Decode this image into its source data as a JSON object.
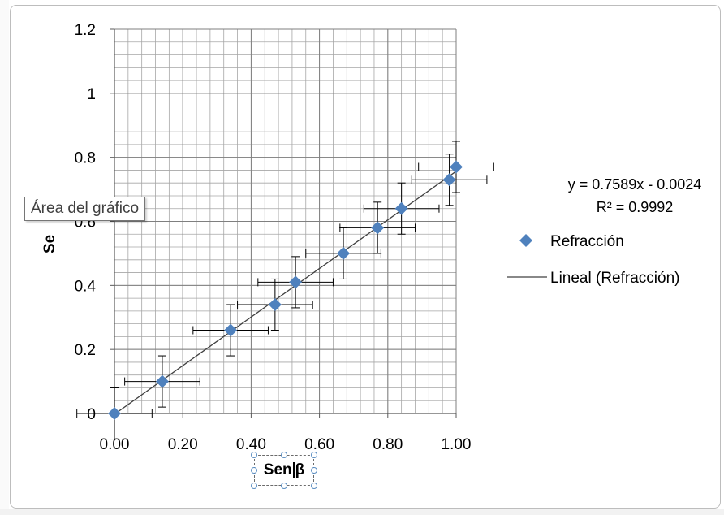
{
  "tooltip": "Área del gráfico",
  "y_axis_title_visible": "Se",
  "x_axis_title": {
    "before_caret": "Sen",
    "after_caret": "β"
  },
  "chart_data": {
    "type": "scatter",
    "title": "",
    "xlabel": "Sen β",
    "ylabel": "Se",
    "xlim": [
      0,
      1
    ],
    "ylim": [
      0,
      1.2
    ],
    "x_ticks": [
      "0.00",
      "0.20",
      "0.40",
      "0.60",
      "0.80",
      "1.00"
    ],
    "y_ticks": [
      "0",
      "0.2",
      "0.4",
      "0.6",
      "0.8",
      "1",
      "1.2"
    ],
    "grid": true,
    "series": [
      {
        "name": "Refracción",
        "marker": "diamond",
        "color": "#4f81bd",
        "points": [
          {
            "x": 0.0,
            "y": 0.0,
            "xerr": 0.11,
            "yerr": 0.08
          },
          {
            "x": 0.14,
            "y": 0.1,
            "xerr": 0.11,
            "yerr": 0.08
          },
          {
            "x": 0.34,
            "y": 0.26,
            "xerr": 0.11,
            "yerr": 0.08
          },
          {
            "x": 0.47,
            "y": 0.34,
            "xerr": 0.11,
            "yerr": 0.08
          },
          {
            "x": 0.53,
            "y": 0.41,
            "xerr": 0.11,
            "yerr": 0.08
          },
          {
            "x": 0.67,
            "y": 0.5,
            "xerr": 0.11,
            "yerr": 0.08
          },
          {
            "x": 0.77,
            "y": 0.58,
            "xerr": 0.11,
            "yerr": 0.08
          },
          {
            "x": 0.84,
            "y": 0.64,
            "xerr": 0.11,
            "yerr": 0.08
          },
          {
            "x": 0.98,
            "y": 0.73,
            "xerr": 0.11,
            "yerr": 0.08
          },
          {
            "x": 1.0,
            "y": 0.77,
            "xerr": 0.11,
            "yerr": 0.08
          }
        ]
      }
    ],
    "trendline": {
      "name": "Lineal (Refracción)",
      "type": "linear",
      "slope": 0.7589,
      "intercept": -0.0024,
      "equation": "y = 0.7589x - 0.0024",
      "r_squared": "R² = 0.9992",
      "color": "#404040"
    },
    "legend": {
      "position": "right",
      "entries": [
        "Refracción",
        "Lineal (Refracción)"
      ]
    }
  }
}
